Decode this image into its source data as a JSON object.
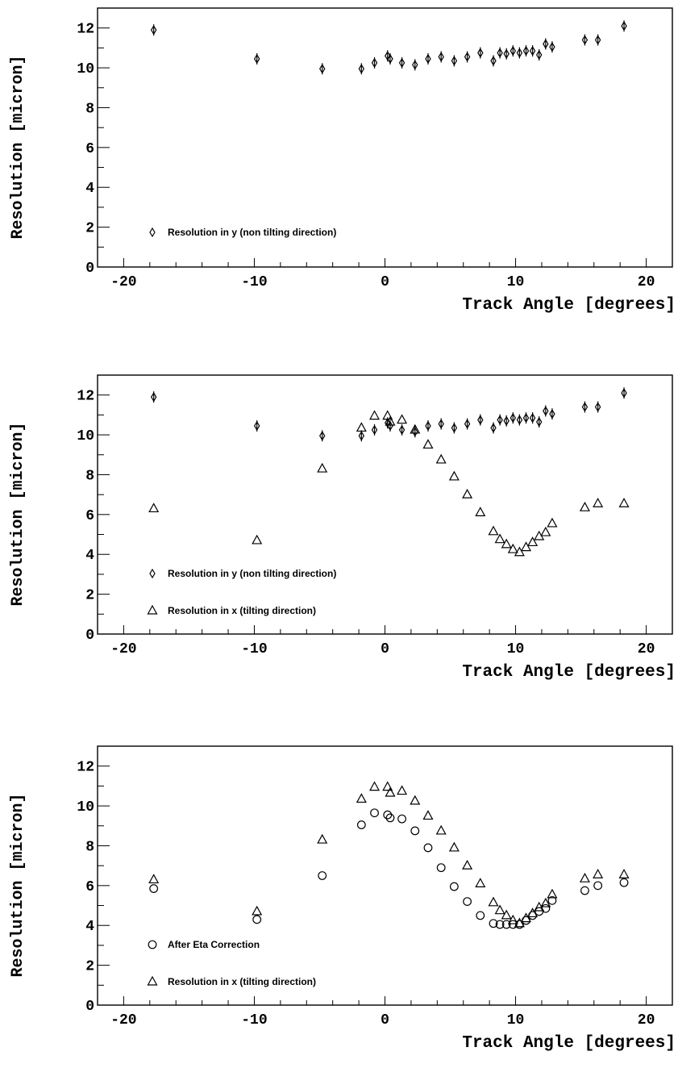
{
  "chart_data": [
    {
      "type": "scatter",
      "ylabel": "Resolution [micron]",
      "xlabel": "Track Angle [degrees]",
      "xlim": [
        -22,
        22
      ],
      "ylim": [
        0,
        13
      ],
      "xticks": [
        "-20",
        "-10",
        "0",
        "10",
        "20"
      ],
      "yticks": [
        "0",
        "2",
        "4",
        "6",
        "8",
        "10",
        "12"
      ],
      "legend_position": "bottom-left",
      "series": [
        {
          "name": "Resolution in y (non tilting direction)",
          "marker": "diamond",
          "error_bars": true,
          "x": [
            -17.7,
            -9.8,
            -4.8,
            -1.8,
            -0.8,
            0.2,
            0.4,
            1.3,
            2.3,
            3.3,
            4.3,
            5.3,
            6.3,
            7.3,
            8.3,
            8.8,
            9.3,
            9.8,
            10.3,
            10.8,
            11.3,
            11.8,
            12.3,
            12.8,
            15.3,
            16.3,
            18.3
          ],
          "y": [
            11.9,
            10.45,
            9.95,
            9.95,
            10.25,
            10.6,
            10.45,
            10.25,
            10.15,
            10.45,
            10.55,
            10.35,
            10.55,
            10.75,
            10.35,
            10.75,
            10.7,
            10.85,
            10.75,
            10.85,
            10.85,
            10.65,
            11.2,
            11.05,
            11.4,
            11.4,
            12.1
          ]
        }
      ]
    },
    {
      "type": "scatter",
      "ylabel": "Resolution [micron]",
      "xlabel": "Track Angle [degrees]",
      "xlim": [
        -22,
        22
      ],
      "ylim": [
        0,
        13
      ],
      "xticks": [
        "-20",
        "-10",
        "0",
        "10",
        "20"
      ],
      "yticks": [
        "0",
        "2",
        "4",
        "6",
        "8",
        "10",
        "12"
      ],
      "legend_position": "bottom-left",
      "series": [
        {
          "name": "Resolution in y (non tilting direction)",
          "marker": "diamond",
          "error_bars": true,
          "x": [
            -17.7,
            -9.8,
            -4.8,
            -1.8,
            -0.8,
            0.2,
            0.4,
            1.3,
            2.3,
            3.3,
            4.3,
            5.3,
            6.3,
            7.3,
            8.3,
            8.8,
            9.3,
            9.8,
            10.3,
            10.8,
            11.3,
            11.8,
            12.3,
            12.8,
            15.3,
            16.3,
            18.3
          ],
          "y": [
            11.9,
            10.45,
            9.95,
            9.95,
            10.25,
            10.6,
            10.45,
            10.25,
            10.15,
            10.45,
            10.55,
            10.35,
            10.55,
            10.75,
            10.35,
            10.75,
            10.7,
            10.85,
            10.75,
            10.85,
            10.85,
            10.65,
            11.2,
            11.05,
            11.4,
            11.4,
            12.1
          ]
        },
        {
          "name": "Resolution in x (tilting direction)",
          "marker": "triangle",
          "error_bars": false,
          "x": [
            -17.7,
            -9.8,
            -4.8,
            -1.8,
            -0.8,
            0.2,
            0.4,
            1.3,
            2.3,
            3.3,
            4.3,
            5.3,
            6.3,
            7.3,
            8.3,
            8.8,
            9.3,
            9.8,
            10.3,
            10.8,
            11.3,
            11.8,
            12.3,
            12.8,
            15.3,
            16.3,
            18.3
          ],
          "y": [
            6.3,
            4.7,
            8.3,
            10.35,
            10.95,
            10.95,
            10.65,
            10.75,
            10.25,
            9.5,
            8.75,
            7.9,
            7.0,
            6.1,
            5.15,
            4.75,
            4.5,
            4.25,
            4.1,
            4.35,
            4.6,
            4.9,
            5.1,
            5.55,
            6.35,
            6.55,
            6.55
          ]
        }
      ]
    },
    {
      "type": "scatter",
      "ylabel": "Resolution [micron]",
      "xlabel": "Track Angle [degrees]",
      "xlim": [
        -22,
        22
      ],
      "ylim": [
        0,
        13
      ],
      "xticks": [
        "-20",
        "-10",
        "0",
        "10",
        "20"
      ],
      "yticks": [
        "0",
        "2",
        "4",
        "6",
        "8",
        "10",
        "12"
      ],
      "legend_position": "bottom-left",
      "series": [
        {
          "name": "After Eta Correction",
          "marker": "circle",
          "error_bars": false,
          "x": [
            -17.7,
            -9.8,
            -4.8,
            -1.8,
            -0.8,
            0.2,
            0.4,
            1.3,
            2.3,
            3.3,
            4.3,
            5.3,
            6.3,
            7.3,
            8.3,
            8.8,
            9.3,
            9.8,
            10.3,
            10.8,
            11.3,
            11.8,
            12.3,
            12.8,
            15.3,
            16.3,
            18.3
          ],
          "y": [
            5.85,
            4.3,
            6.5,
            9.05,
            9.65,
            9.55,
            9.4,
            9.35,
            8.75,
            7.9,
            6.9,
            5.95,
            5.2,
            4.5,
            4.1,
            4.05,
            4.05,
            4.05,
            4.05,
            4.25,
            4.5,
            4.7,
            4.85,
            5.25,
            5.75,
            6.0,
            6.15
          ]
        },
        {
          "name": "Resolution in x (tilting direction)",
          "marker": "triangle",
          "error_bars": false,
          "x": [
            -17.7,
            -9.8,
            -4.8,
            -1.8,
            -0.8,
            0.2,
            0.4,
            1.3,
            2.3,
            3.3,
            4.3,
            5.3,
            6.3,
            7.3,
            8.3,
            8.8,
            9.3,
            9.8,
            10.3,
            10.8,
            11.3,
            11.8,
            12.3,
            12.8,
            15.3,
            16.3,
            18.3
          ],
          "y": [
            6.3,
            4.7,
            8.3,
            10.35,
            10.95,
            10.95,
            10.65,
            10.75,
            10.25,
            9.5,
            8.75,
            7.9,
            7.0,
            6.1,
            5.15,
            4.75,
            4.5,
            4.25,
            4.1,
            4.35,
            4.6,
            4.9,
            5.1,
            5.55,
            6.35,
            6.55,
            6.55
          ]
        }
      ]
    }
  ]
}
